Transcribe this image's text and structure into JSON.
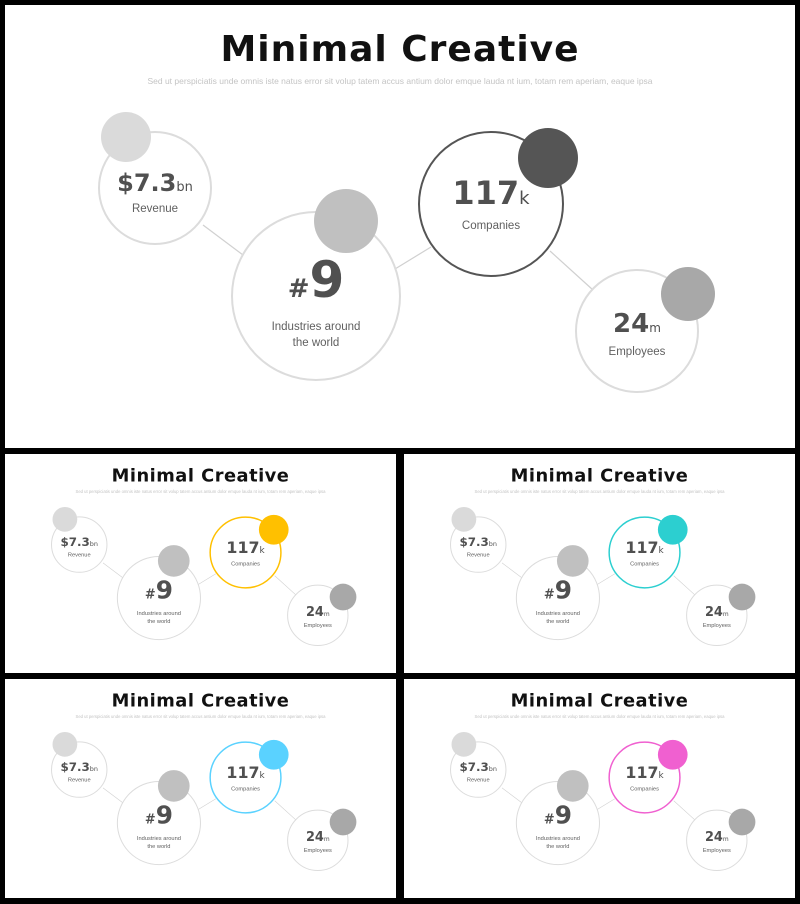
{
  "title": "Minimal Creative",
  "subtitle": "Sed ut perspiciatis unde omnis iste natus error sit volup tatem accus antium dolor emque lauda nt ium, totam rem aperiam, eaque ipsa",
  "stats": {
    "revenue": {
      "value": "$7.3",
      "unit": "bn",
      "label": "Revenue"
    },
    "industries": {
      "prefix": "#",
      "value": "9",
      "label_line1": "Industries around",
      "label_line2": "the world"
    },
    "companies": {
      "value": "117",
      "unit": "k",
      "label": "Companies"
    },
    "employees": {
      "value": "24",
      "unit": "m",
      "label": "Employees"
    }
  },
  "variants": [
    {
      "accent": "#555555",
      "ring": "#555555"
    },
    {
      "accent": "#FFC000",
      "ring": "#FFC000"
    },
    {
      "accent": "#2CCFD0",
      "ring": "#2CCFD0"
    },
    {
      "accent": "#5AD2FF",
      "ring": "#5AD2FF"
    },
    {
      "accent": "#F060D0",
      "ring": "#F060D0"
    }
  ]
}
